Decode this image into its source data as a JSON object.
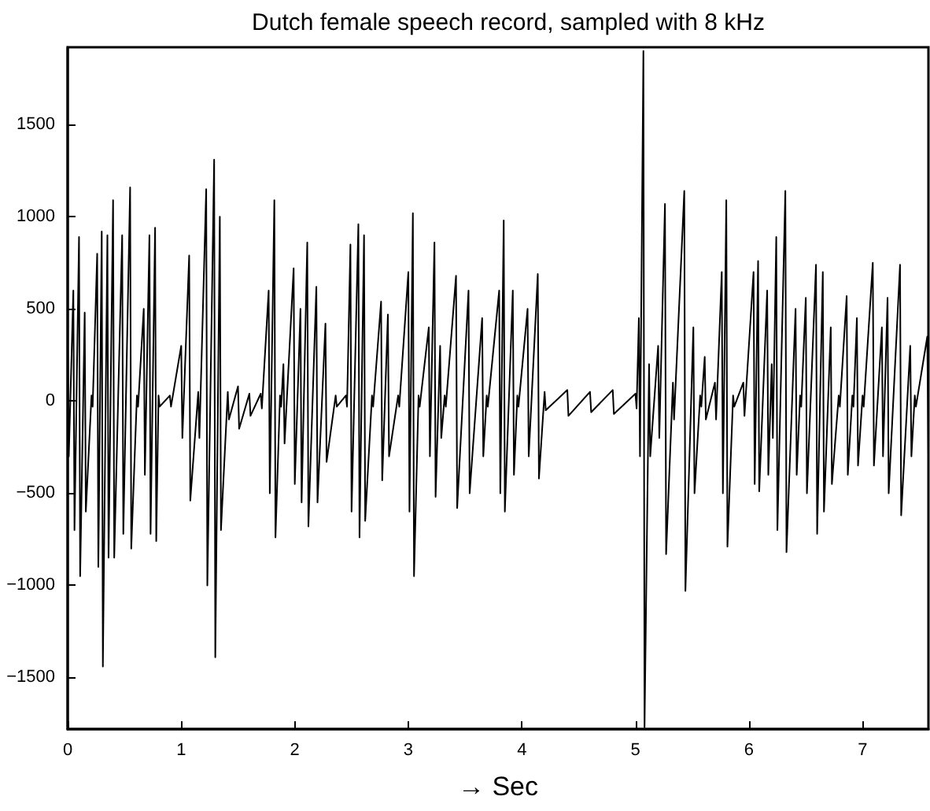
{
  "chart_data": {
    "type": "line",
    "title": "Dutch female speech record, sampled with 8 kHz",
    "xlabel": "→ Sec",
    "xlim": [
      0,
      7.58
    ],
    "xticks": [
      0,
      1,
      2,
      3,
      4,
      5,
      6,
      7
    ],
    "ylim": [
      -1780,
      1920
    ],
    "yticks": [
      -1500,
      -1000,
      -500,
      0,
      500,
      1000,
      1500
    ],
    "grid": false,
    "marker": "none",
    "line_style": "solid",
    "series": [
      {
        "color": "#000000",
        "x": [
          0,
          0.01,
          0.05,
          0.06,
          0.1,
          0.11,
          0.15,
          0.16,
          0.21,
          0.22,
          0.26,
          0.27,
          0.3,
          0.31,
          0.35,
          0.36,
          0.4,
          0.41,
          0.48,
          0.49,
          0.55,
          0.56,
          0.61,
          0.62,
          0.67,
          0.68,
          0.72,
          0.73,
          0.77,
          0.78,
          0.8,
          0.81,
          0.9,
          0.91,
          1.0,
          1.01,
          1.07,
          1.08,
          1.15,
          1.16,
          1.22,
          1.23,
          1.29,
          1.3,
          1.34,
          1.35,
          1.41,
          1.42,
          1.5,
          1.51,
          1.6,
          1.61,
          1.7,
          1.71,
          1.77,
          1.78,
          1.82,
          1.83,
          1.87,
          1.88,
          1.9,
          1.91,
          1.99,
          2.0,
          2.05,
          2.06,
          2.11,
          2.12,
          2.19,
          2.2,
          2.27,
          2.28,
          2.36,
          2.37,
          2.45,
          2.46,
          2.49,
          2.5,
          2.56,
          2.57,
          2.61,
          2.62,
          2.68,
          2.69,
          2.76,
          2.77,
          2.82,
          2.83,
          2.91,
          2.92,
          3.0,
          3.01,
          3.04,
          3.05,
          3.09,
          3.1,
          3.18,
          3.19,
          3.23,
          3.24,
          3.28,
          3.29,
          3.32,
          3.33,
          3.42,
          3.43,
          3.53,
          3.54,
          3.65,
          3.66,
          3.69,
          3.7,
          3.8,
          3.81,
          3.84,
          3.85,
          3.92,
          3.93,
          3.96,
          3.97,
          4.05,
          4.06,
          4.14,
          4.15,
          4.2,
          4.21,
          4.4,
          4.41,
          4.6,
          4.61,
          4.8,
          4.81,
          5.0,
          5.01,
          5.03,
          5.04,
          5.07,
          5.08,
          5.12,
          5.13,
          5.2,
          5.21,
          5.26,
          5.27,
          5.33,
          5.34,
          5.43,
          5.44,
          5.51,
          5.52,
          5.57,
          5.58,
          5.61,
          5.62,
          5.7,
          5.71,
          5.76,
          5.77,
          5.8,
          5.81,
          5.86,
          5.87,
          5.95,
          5.96,
          6.04,
          6.05,
          6.08,
          6.09,
          6.16,
          6.17,
          6.2,
          6.21,
          6.24,
          6.25,
          6.32,
          6.33,
          6.41,
          6.42,
          6.45,
          6.46,
          6.5,
          6.51,
          6.59,
          6.6,
          6.65,
          6.66,
          6.72,
          6.73,
          6.79,
          6.8,
          6.86,
          6.87,
          6.91,
          6.92,
          6.95,
          6.96,
          7.0,
          7.01,
          7.09,
          7.1,
          7.17,
          7.18,
          7.22,
          7.23,
          7.33,
          7.34,
          7.42,
          7.43,
          7.46,
          7.47,
          7.57,
          7.58
        ],
        "values": [
          300,
          -300,
          600,
          -700,
          890,
          -950,
          480,
          -600,
          30,
          -30,
          800,
          -900,
          920,
          -1440,
          900,
          -850,
          1090,
          -850,
          900,
          -720,
          1160,
          -800,
          30,
          -30,
          500,
          -400,
          900,
          -720,
          940,
          -760,
          30,
          -30,
          30,
          -30,
          300,
          -200,
          790,
          -540,
          50,
          -200,
          1150,
          -1000,
          1310,
          -1390,
          1000,
          -700,
          50,
          -100,
          80,
          -150,
          40,
          -80,
          40,
          -40,
          600,
          -500,
          1090,
          -740,
          30,
          -30,
          200,
          -230,
          720,
          -450,
          500,
          -550,
          860,
          -680,
          620,
          -550,
          420,
          -330,
          30,
          -30,
          30,
          -30,
          850,
          -600,
          960,
          -740,
          900,
          -650,
          30,
          -30,
          540,
          -430,
          470,
          -300,
          30,
          -30,
          700,
          -600,
          1020,
          -950,
          30,
          -30,
          400,
          -300,
          860,
          -520,
          300,
          -200,
          30,
          -30,
          680,
          -580,
          600,
          -500,
          450,
          -300,
          30,
          -30,
          600,
          -500,
          980,
          -600,
          600,
          -400,
          30,
          -30,
          500,
          -300,
          690,
          -420,
          50,
          -50,
          60,
          -80,
          50,
          -60,
          60,
          -70,
          40,
          -40,
          450,
          -300,
          1900,
          -1770,
          200,
          -300,
          300,
          -200,
          1070,
          -830,
          100,
          -100,
          1140,
          -1030,
          400,
          -500,
          30,
          -30,
          240,
          -100,
          100,
          -100,
          700,
          -500,
          1090,
          -790,
          30,
          -30,
          100,
          -80,
          700,
          -450,
          760,
          -490,
          600,
          -400,
          200,
          -200,
          890,
          -700,
          1140,
          -820,
          500,
          -400,
          30,
          -30,
          560,
          -500,
          740,
          -720,
          700,
          -600,
          400,
          -450,
          30,
          -30,
          570,
          -400,
          30,
          -30,
          450,
          -350,
          30,
          -30,
          750,
          -350,
          400,
          -300,
          560,
          -500,
          740,
          -620,
          300,
          -300,
          30,
          -30,
          350,
          -300
        ]
      }
    ]
  }
}
